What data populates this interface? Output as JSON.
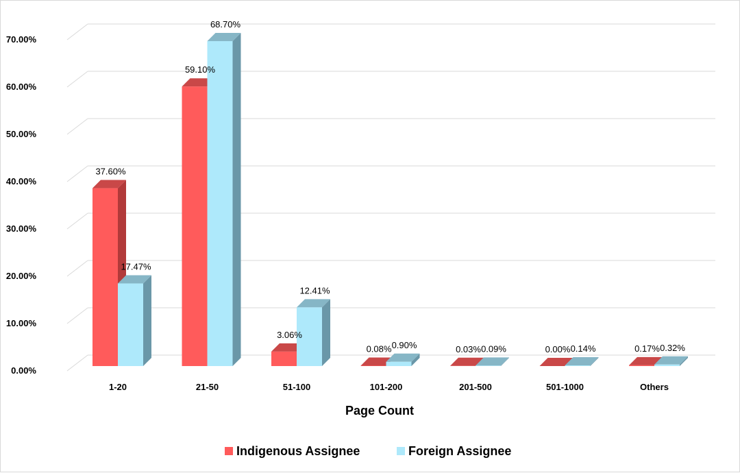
{
  "chart_data": {
    "type": "bar",
    "categories": [
      "1-20",
      "21-50",
      "51-100",
      "101-200",
      "201-500",
      "501-1000",
      "Others"
    ],
    "series": [
      {
        "name": "Indigenous Assignee",
        "values": [
          37.6,
          59.1,
          3.06,
          0.08,
          0.03,
          0.0,
          0.17
        ],
        "labels": [
          "37.60%",
          "59.10%",
          "3.06%",
          "0.08%",
          "0.03%",
          "0.00%",
          "0.17%"
        ],
        "color": "#ff5b5b",
        "side_color": "#b23a3a",
        "top_color": "#c94848"
      },
      {
        "name": "Foreign Assignee",
        "values": [
          17.47,
          68.7,
          12.41,
          0.9,
          0.09,
          0.14,
          0.32
        ],
        "labels": [
          "17.47%",
          "68.70%",
          "12.41%",
          "0.90%",
          "0.09%",
          "0.14%",
          "0.32%"
        ],
        "color": "#aee9fb",
        "side_color": "#6a97a8",
        "top_color": "#86b6c6"
      }
    ],
    "y_ticks": [
      "0.00%",
      "10.00%",
      "20.00%",
      "30.00%",
      "40.00%",
      "50.00%",
      "60.00%",
      "70.00%"
    ],
    "ylim": [
      0,
      70
    ],
    "xlabel": "Page Count",
    "ylabel": "",
    "grid": true,
    "legend_position": "bottom",
    "style": "3d-column"
  }
}
